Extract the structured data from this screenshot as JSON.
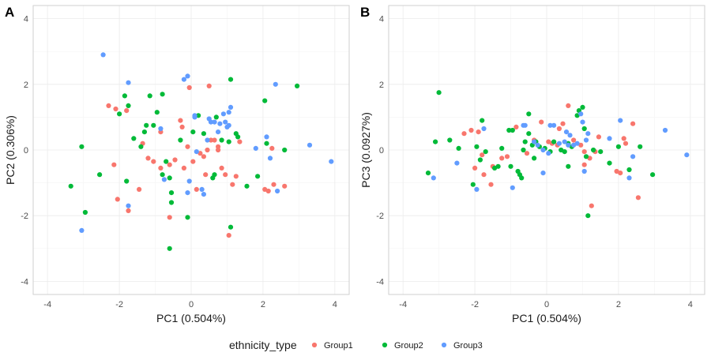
{
  "chart_data": {
    "legend": {
      "title": "ethnicity_type",
      "position": "bottom",
      "entries": [
        {
          "name": "Group1",
          "color": "#F8766D"
        },
        {
          "name": "Group2",
          "color": "#00BA38"
        },
        {
          "name": "Group3",
          "color": "#619CFF"
        }
      ]
    },
    "panels": [
      {
        "tag": "A",
        "type": "scatter",
        "xlabel": "PC1 (0.504%)",
        "ylabel": "PC2 (0.306%)",
        "xlim": [
          -4.4,
          4.4
        ],
        "ylim": [
          -4.4,
          4.4
        ],
        "xticks": [
          -4,
          -2,
          0,
          2,
          4
        ],
        "yticks": [
          -4,
          -2,
          0,
          2,
          4
        ],
        "tick_labels_x": [
          "-4",
          "-2",
          "0",
          "2",
          "4"
        ],
        "tick_labels_y": [
          "-4",
          "-2",
          "0",
          "2",
          "4"
        ],
        "series": [
          {
            "name": "Group1",
            "points": [
              [
                -2.3,
                1.35
              ],
              [
                -2.1,
                1.25
              ],
              [
                -1.8,
                1.2
              ],
              [
                -2.15,
                -0.45
              ],
              [
                -2.05,
                -1.5
              ],
              [
                -1.75,
                -1.85
              ],
              [
                -1.45,
                -1.2
              ],
              [
                -1.35,
                0.2
              ],
              [
                -1.2,
                -0.25
              ],
              [
                -1.05,
                -0.35
              ],
              [
                -0.85,
                -0.55
              ],
              [
                -0.6,
                -0.45
              ],
              [
                -0.45,
                -0.3
              ],
              [
                -0.3,
                0.9
              ],
              [
                -0.2,
                -0.55
              ],
              [
                -0.1,
                0.1
              ],
              [
                -0.05,
                1.9
              ],
              [
                0.05,
                -0.35
              ],
              [
                0.15,
                -1.2
              ],
              [
                0.25,
                -0.1
              ],
              [
                0.35,
                -0.2
              ],
              [
                0.4,
                -0.75
              ],
              [
                0.45,
                0.0
              ],
              [
                0.5,
                1.95
              ],
              [
                0.55,
                0.3
              ],
              [
                0.65,
                0.3
              ],
              [
                0.75,
                0.1
              ],
              [
                0.85,
                -0.55
              ],
              [
                0.95,
                -0.75
              ],
              [
                1.15,
                -1.05
              ],
              [
                1.25,
                -0.8
              ],
              [
                1.35,
                0.25
              ],
              [
                1.05,
                -2.6
              ],
              [
                -0.6,
                -2.05
              ],
              [
                -0.85,
                0.55
              ],
              [
                2.05,
                -1.2
              ],
              [
                2.15,
                -1.25
              ],
              [
                2.25,
                0.05
              ],
              [
                2.3,
                -1.05
              ],
              [
                2.6,
                -1.1
              ],
              [
                0.75,
                0.0
              ],
              [
                -0.25,
                0.7
              ]
            ]
          },
          {
            "name": "Group2",
            "points": [
              [
                -3.35,
                -1.1
              ],
              [
                -3.05,
                0.1
              ],
              [
                -2.95,
                -1.9
              ],
              [
                -2.55,
                -0.75
              ],
              [
                -2.0,
                1.1
              ],
              [
                -1.85,
                1.65
              ],
              [
                -1.75,
                1.35
              ],
              [
                -1.8,
                -0.95
              ],
              [
                -1.6,
                0.35
              ],
              [
                -1.4,
                0.1
              ],
              [
                -1.3,
                0.55
              ],
              [
                -1.25,
                0.75
              ],
              [
                -1.15,
                1.65
              ],
              [
                -1.05,
                0.75
              ],
              [
                -0.95,
                1.15
              ],
              [
                -0.8,
                1.7
              ],
              [
                -0.8,
                -0.75
              ],
              [
                -0.7,
                -0.35
              ],
              [
                -0.6,
                -0.85
              ],
              [
                -0.55,
                -1.3
              ],
              [
                -0.55,
                -1.6
              ],
              [
                -0.6,
                -3.0
              ],
              [
                -0.3,
                0.3
              ],
              [
                -0.1,
                -2.05
              ],
              [
                0.05,
                0.55
              ],
              [
                0.2,
                1.05
              ],
              [
                0.35,
                0.5
              ],
              [
                0.6,
                -0.85
              ],
              [
                0.65,
                -0.75
              ],
              [
                0.7,
                1.0
              ],
              [
                0.85,
                0.3
              ],
              [
                1.05,
                0.25
              ],
              [
                1.1,
                2.15
              ],
              [
                1.25,
                0.5
              ],
              [
                1.3,
                0.4
              ],
              [
                1.1,
                -2.35
              ],
              [
                1.55,
                -1.1
              ],
              [
                1.85,
                -0.8
              ],
              [
                2.05,
                1.5
              ],
              [
                2.1,
                0.2
              ],
              [
                2.6,
                0.0
              ],
              [
                2.95,
                1.95
              ]
            ]
          },
          {
            "name": "Group3",
            "points": [
              [
                -3.05,
                -2.45
              ],
              [
                -2.45,
                2.9
              ],
              [
                -1.75,
                2.05
              ],
              [
                -1.75,
                -1.7
              ],
              [
                -0.85,
                0.65
              ],
              [
                -0.75,
                -0.9
              ],
              [
                -0.2,
                2.15
              ],
              [
                -0.1,
                2.25
              ],
              [
                -0.1,
                -1.3
              ],
              [
                -0.05,
                -0.95
              ],
              [
                0.1,
                1.05
              ],
              [
                0.1,
                1.0
              ],
              [
                0.15,
                -0.05
              ],
              [
                0.3,
                -1.2
              ],
              [
                0.35,
                -1.35
              ],
              [
                0.5,
                0.95
              ],
              [
                0.55,
                0.85
              ],
              [
                0.65,
                0.85
              ],
              [
                0.75,
                0.55
              ],
              [
                0.8,
                0.8
              ],
              [
                0.9,
                1.1
              ],
              [
                0.95,
                0.85
              ],
              [
                1.0,
                0.7
              ],
              [
                1.05,
                0.75
              ],
              [
                1.1,
                1.3
              ],
              [
                1.05,
                1.15
              ],
              [
                1.8,
                0.05
              ],
              [
                2.1,
                0.4
              ],
              [
                2.2,
                -0.25
              ],
              [
                2.35,
                2.0
              ],
              [
                2.4,
                -1.25
              ],
              [
                3.3,
                0.15
              ],
              [
                3.9,
                -0.35
              ],
              [
                0.45,
                0.3
              ]
            ]
          }
        ]
      },
      {
        "tag": "B",
        "type": "scatter",
        "xlabel": "PC1 (0.504%)",
        "ylabel": "PC3 (0.0927%)",
        "xlim": [
          -4.4,
          4.4
        ],
        "ylim": [
          -4.4,
          4.4
        ],
        "xticks": [
          -4,
          -2,
          0,
          2,
          4
        ],
        "yticks": [
          -4,
          -2,
          0,
          2,
          4
        ],
        "tick_labels_x": [
          "-4",
          "-2",
          "0",
          "2",
          "4"
        ],
        "tick_labels_y": [
          "-4",
          "-2",
          "0",
          "2",
          "4"
        ],
        "series": [
          {
            "name": "Group1",
            "points": [
              [
                -2.3,
                0.5
              ],
              [
                -2.1,
                0.6
              ],
              [
                -2.0,
                -0.55
              ],
              [
                -1.9,
                0.55
              ],
              [
                -1.8,
                -0.15
              ],
              [
                -1.75,
                -0.75
              ],
              [
                -1.55,
                -1.05
              ],
              [
                -1.5,
                -0.5
              ],
              [
                -1.25,
                -0.25
              ],
              [
                -1.1,
                -0.2
              ],
              [
                -0.85,
                0.7
              ],
              [
                -0.55,
                -0.1
              ],
              [
                -0.15,
                0.85
              ],
              [
                0.05,
                0.25
              ],
              [
                0.3,
                0.15
              ],
              [
                0.35,
                0.65
              ],
              [
                0.45,
                0.8
              ],
              [
                0.6,
                1.35
              ],
              [
                0.75,
                0.3
              ],
              [
                0.95,
                0.15
              ],
              [
                1.05,
                -0.05
              ],
              [
                1.2,
                -0.25
              ],
              [
                1.25,
                -1.7
              ],
              [
                1.35,
                -0.05
              ],
              [
                1.45,
                0.4
              ],
              [
                1.95,
                -0.65
              ],
              [
                2.05,
                -0.7
              ],
              [
                2.15,
                0.35
              ],
              [
                2.2,
                0.2
              ],
              [
                2.4,
                0.8
              ],
              [
                2.55,
                -1.45
              ],
              [
                1.05,
                -0.45
              ],
              [
                0.15,
                0.2
              ],
              [
                -0.35,
                0.3
              ]
            ]
          },
          {
            "name": "Group2",
            "points": [
              [
                -3.3,
                -0.7
              ],
              [
                -3.1,
                0.25
              ],
              [
                -3.0,
                1.75
              ],
              [
                -2.7,
                0.3
              ],
              [
                -2.45,
                0.05
              ],
              [
                -2.05,
                -1.05
              ],
              [
                -1.95,
                0.1
              ],
              [
                -1.85,
                -0.3
              ],
              [
                -1.8,
                0.9
              ],
              [
                -1.7,
                -0.05
              ],
              [
                -1.45,
                -0.55
              ],
              [
                -1.35,
                -0.5
              ],
              [
                -1.25,
                0.05
              ],
              [
                -1.05,
                0.6
              ],
              [
                -1.0,
                -0.5
              ],
              [
                -0.95,
                0.6
              ],
              [
                -0.8,
                -0.65
              ],
              [
                -0.75,
                -0.75
              ],
              [
                -0.7,
                -0.85
              ],
              [
                -0.65,
                0.0
              ],
              [
                -0.6,
                0.25
              ],
              [
                -0.5,
                0.5
              ],
              [
                -0.5,
                1.1
              ],
              [
                -0.4,
                0.15
              ],
              [
                -0.35,
                -0.25
              ],
              [
                -0.2,
                0.1
              ],
              [
                0.1,
                -0.05
              ],
              [
                0.2,
                0.25
              ],
              [
                0.4,
                0.0
              ],
              [
                0.5,
                -0.05
              ],
              [
                0.6,
                -0.5
              ],
              [
                0.7,
                0.1
              ],
              [
                0.85,
                1.05
              ],
              [
                0.9,
                1.2
              ],
              [
                1.0,
                1.3
              ],
              [
                1.05,
                0.65
              ],
              [
                1.1,
                -0.2
              ],
              [
                1.15,
                -2.0
              ],
              [
                1.3,
                0.0
              ],
              [
                1.5,
                -0.05
              ],
              [
                1.75,
                -0.4
              ],
              [
                2.0,
                0.1
              ],
              [
                2.3,
                -0.6
              ],
              [
                2.6,
                0.1
              ],
              [
                2.95,
                -0.75
              ],
              [
                0.6,
                0.2
              ],
              [
                -0.05,
                0.05
              ],
              [
                -0.3,
                0.25
              ]
            ]
          },
          {
            "name": "Group3",
            "points": [
              [
                -3.15,
                -0.85
              ],
              [
                -2.5,
                -0.4
              ],
              [
                -1.95,
                -1.2
              ],
              [
                -1.75,
                0.65
              ],
              [
                -0.95,
                -1.15
              ],
              [
                -0.65,
                0.75
              ],
              [
                -0.35,
                0.25
              ],
              [
                -0.25,
                0.15
              ],
              [
                -0.1,
                0.0
              ],
              [
                0.05,
                -0.1
              ],
              [
                0.1,
                0.75
              ],
              [
                0.2,
                0.75
              ],
              [
                0.35,
                0.2
              ],
              [
                0.5,
                0.25
              ],
              [
                0.6,
                0.15
              ],
              [
                0.65,
                0.45
              ],
              [
                0.75,
                0.15
              ],
              [
                0.85,
                0.2
              ],
              [
                0.95,
                1.1
              ],
              [
                1.0,
                0.85
              ],
              [
                1.05,
                -0.65
              ],
              [
                1.1,
                0.3
              ],
              [
                1.15,
                0.5
              ],
              [
                1.75,
                0.35
              ],
              [
                2.05,
                0.9
              ],
              [
                2.3,
                -0.85
              ],
              [
                2.4,
                -0.2
              ],
              [
                3.3,
                0.6
              ],
              [
                3.9,
                -0.15
              ],
              [
                -0.6,
                0.75
              ],
              [
                -0.1,
                -0.7
              ],
              [
                0.55,
                0.55
              ]
            ]
          }
        ]
      }
    ]
  }
}
